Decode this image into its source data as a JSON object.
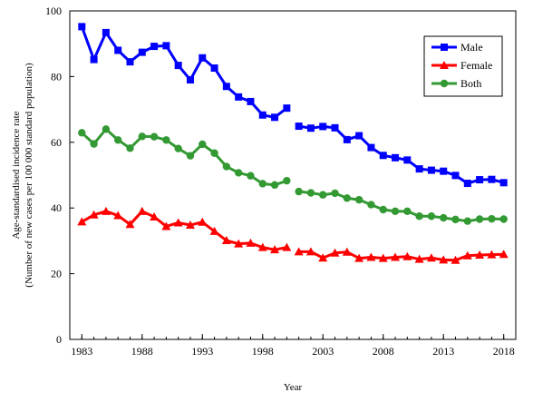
{
  "chart_data": {
    "type": "line",
    "title": "",
    "xlabel": "Year",
    "ylabel": [
      "Age-standardised incidence rate",
      "(Number of new cases per 100 000 standard population)"
    ],
    "xlim": [
      1983,
      2018
    ],
    "ylim": [
      0,
      100
    ],
    "xticks": [
      1983,
      1988,
      1993,
      1998,
      2003,
      2008,
      2013,
      2018
    ],
    "yticks": [
      0,
      20,
      40,
      60,
      80,
      100
    ],
    "grid": false,
    "legend_position": "top-right",
    "series": [
      {
        "name": "Male",
        "color": "#0000ff",
        "marker": "square",
        "segments": [
          {
            "x": [
              1983,
              1984,
              1985,
              1986,
              1987,
              1988,
              1989,
              1990,
              1991,
              1992,
              1993,
              1994,
              1995,
              1996,
              1997,
              1998,
              1999,
              2000
            ],
            "y": [
              95.2,
              85.2,
              93.4,
              88.0,
              84.5,
              87.4,
              89.2,
              89.4,
              83.4,
              79.0,
              85.7,
              82.6,
              77.0,
              73.8,
              72.4,
              68.3,
              67.6,
              70.4
            ]
          },
          {
            "x": [
              2001,
              2002,
              2003,
              2004,
              2005,
              2006,
              2007,
              2008,
              2009,
              2010,
              2011,
              2012,
              2013,
              2014,
              2015,
              2016,
              2017,
              2018
            ],
            "y": [
              64.9,
              64.3,
              64.8,
              64.4,
              60.8,
              62.0,
              58.4,
              56.0,
              55.3,
              54.6,
              51.9,
              51.5,
              51.2,
              49.9,
              47.5,
              48.6,
              48.7,
              47.7
            ]
          }
        ]
      },
      {
        "name": "Female",
        "color": "#ff0000",
        "marker": "triangle",
        "segments": [
          {
            "x": [
              1983,
              1984,
              1985,
              1986,
              1987,
              1988,
              1989,
              1990,
              1991,
              1992,
              1993,
              1994,
              1995,
              1996,
              1997,
              1998,
              1999,
              2000
            ],
            "y": [
              35.8,
              37.9,
              39.0,
              37.7,
              35.0,
              39.0,
              37.3,
              34.4,
              35.5,
              34.8,
              35.7,
              32.9,
              30.1,
              29.1,
              29.3,
              28.0,
              27.3,
              28.0
            ]
          },
          {
            "x": [
              2001,
              2002,
              2003,
              2004,
              2005,
              2006,
              2007,
              2008,
              2009,
              2010,
              2011,
              2012,
              2013,
              2014,
              2015,
              2016,
              2017,
              2018
            ],
            "y": [
              26.7,
              26.7,
              24.8,
              26.3,
              26.6,
              24.7,
              25.0,
              24.7,
              25.0,
              25.2,
              24.4,
              24.8,
              24.2,
              24.1,
              25.5,
              25.7,
              25.8,
              25.9
            ]
          }
        ]
      },
      {
        "name": "Both",
        "color": "#339933",
        "marker": "circle",
        "segments": [
          {
            "x": [
              1983,
              1984,
              1985,
              1986,
              1987,
              1988,
              1989,
              1990,
              1991,
              1992,
              1993,
              1994,
              1995,
              1996,
              1997,
              1998,
              1999,
              2000
            ],
            "y": [
              62.9,
              59.5,
              64.0,
              60.7,
              58.2,
              61.8,
              61.7,
              60.7,
              58.1,
              55.9,
              59.4,
              56.7,
              52.6,
              50.7,
              49.8,
              47.4,
              47.0,
              48.3
            ]
          },
          {
            "x": [
              2001,
              2002,
              2003,
              2004,
              2005,
              2006,
              2007,
              2008,
              2009,
              2010,
              2011,
              2012,
              2013,
              2014,
              2015,
              2016,
              2017,
              2018
            ],
            "y": [
              45.0,
              44.6,
              44.0,
              44.5,
              43.0,
              42.5,
              41.0,
              39.5,
              39.0,
              39.0,
              37.5,
              37.5,
              37.0,
              36.5,
              36.0,
              36.6,
              36.7,
              36.6
            ]
          }
        ]
      }
    ]
  }
}
